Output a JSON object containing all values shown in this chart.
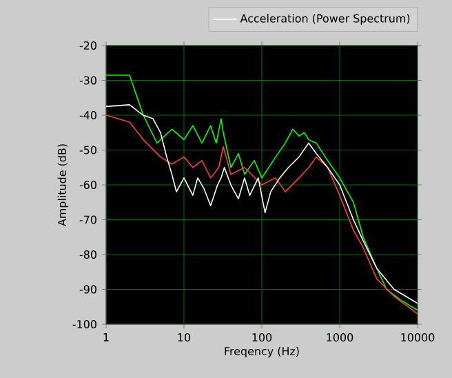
{
  "chart_data": {
    "type": "line",
    "xlabel": "Freqency (Hz)",
    "ylabel": "Amplitude (dB)",
    "log": "x",
    "grid": true,
    "legend": "top right",
    "xlim": [
      1,
      10000
    ],
    "xticks": [
      1,
      10,
      100,
      1000,
      10000
    ],
    "ylim": [
      -100,
      -20
    ],
    "yticks": [
      -100,
      -90,
      -80,
      -70,
      -60,
      -50,
      -40,
      -30,
      -20
    ],
    "series": [
      {
        "color": "#00ff00",
        "x": [
          1,
          2,
          3,
          4.5,
          7,
          10,
          13,
          17,
          22,
          26,
          30,
          32,
          40,
          50,
          60,
          80,
          100,
          150,
          200,
          250,
          300,
          350,
          400,
          500,
          700,
          1000,
          1500,
          2000,
          3000,
          4000,
          6000,
          10000
        ],
        "values": [
          -28.5,
          -28.5,
          -40,
          -48,
          -44,
          -47,
          -43,
          -48,
          -43,
          -48,
          -41,
          -45,
          -55,
          -51,
          -57,
          -53,
          -58,
          -52,
          -48,
          -44,
          -46,
          -45,
          -47,
          -48,
          -53,
          -58,
          -65,
          -75,
          -84,
          -90,
          -93,
          -96
        ]
      },
      {
        "color": "#ff3c3c",
        "x": [
          1,
          2,
          3,
          5,
          7,
          10,
          13,
          17,
          22,
          28,
          32,
          40,
          60,
          100,
          150,
          200,
          300,
          400,
          500,
          700,
          1000,
          1500,
          2000,
          3000,
          5000,
          10000
        ],
        "values": [
          -40,
          -42,
          -47,
          -52,
          -54,
          -52,
          -55,
          -53,
          -58,
          -55,
          -49,
          -57,
          -55,
          -60,
          -58,
          -62,
          -58,
          -55,
          -52,
          -55,
          -63,
          -73,
          -78,
          -87,
          -92,
          -97
        ]
      },
      {
        "name": "Acceleration (Power Spectrum)",
        "color": "#ffffff",
        "x": [
          1,
          2,
          3,
          4,
          5,
          6,
          7,
          8,
          10,
          13,
          15,
          18,
          22,
          27,
          30,
          33,
          40,
          50,
          60,
          70,
          90,
          110,
          130,
          170,
          220,
          300,
          400,
          500,
          700,
          1000,
          1500,
          2000,
          3000,
          5000,
          10000
        ],
        "values": [
          -37.5,
          -37,
          -40,
          -41,
          -45,
          -52,
          -57,
          -62,
          -58,
          -63,
          -58,
          -61,
          -66,
          -60,
          -58,
          -55,
          -60,
          -64,
          -58,
          -63,
          -58,
          -68,
          -62,
          -58,
          -55,
          -52,
          -48,
          -51,
          -55,
          -60,
          -70,
          -76,
          -84,
          -90,
          -94
        ]
      }
    ]
  }
}
